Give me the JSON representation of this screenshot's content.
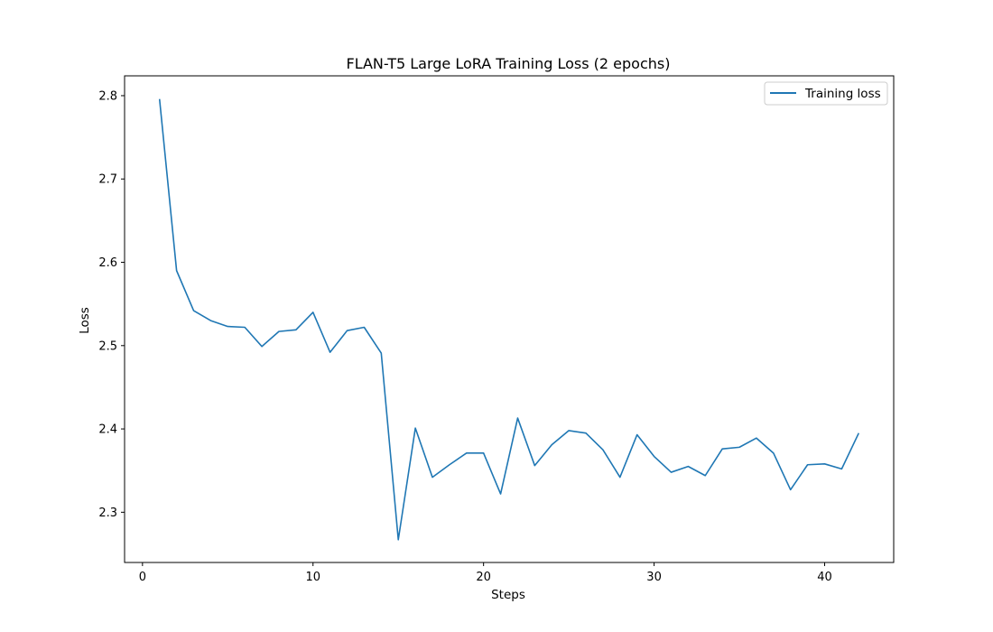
{
  "chart_data": {
    "type": "line",
    "title": "FLAN-T5 Large LoRA Training Loss (2 epochs)",
    "xlabel": "Steps",
    "ylabel": "Loss",
    "xlim": [
      -1.05,
      44.05
    ],
    "ylim": [
      2.2397,
      2.8238
    ],
    "xticks": [
      0,
      10,
      20,
      30,
      40
    ],
    "xtick_labels": [
      "0",
      "10",
      "20",
      "30",
      "40"
    ],
    "yticks": [
      2.3,
      2.4,
      2.5,
      2.6,
      2.7,
      2.8
    ],
    "ytick_labels": [
      "2.3",
      "2.4",
      "2.5",
      "2.6",
      "2.7",
      "2.8"
    ],
    "grid": false,
    "legend_position": "top-right",
    "series": [
      {
        "name": "Training loss",
        "color": "#1f77b4",
        "x": [
          1,
          2,
          3,
          4,
          5,
          6,
          7,
          8,
          9,
          10,
          11,
          12,
          13,
          14,
          15,
          16,
          17,
          18,
          19,
          20,
          21,
          22,
          23,
          24,
          25,
          26,
          27,
          28,
          29,
          30,
          31,
          32,
          33,
          34,
          35,
          36,
          37,
          38,
          39,
          40,
          41,
          42
        ],
        "y": [
          2.796,
          2.59,
          2.542,
          2.53,
          2.523,
          2.522,
          2.499,
          2.517,
          2.519,
          2.54,
          2.492,
          2.518,
          2.522,
          2.491,
          2.267,
          2.401,
          2.342,
          2.357,
          2.371,
          2.371,
          2.322,
          2.413,
          2.356,
          2.381,
          2.398,
          2.395,
          2.375,
          2.342,
          2.393,
          2.367,
          2.348,
          2.355,
          2.344,
          2.376,
          2.378,
          2.389,
          2.371,
          2.327,
          2.357,
          2.358,
          2.352,
          2.395
        ]
      }
    ]
  }
}
